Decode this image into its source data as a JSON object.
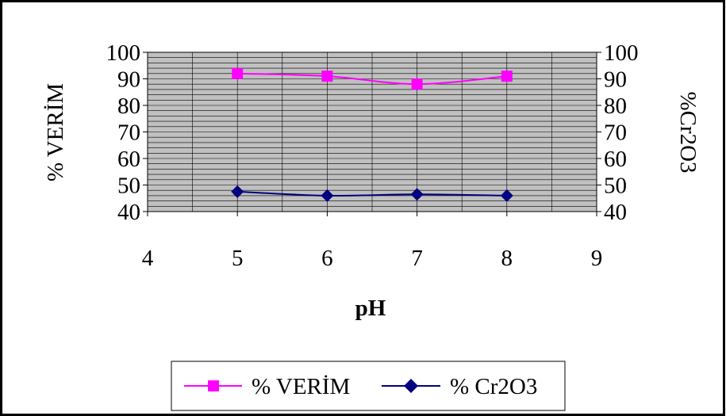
{
  "colors": {
    "plot_background": "#c0c0c0",
    "grid": "#000000",
    "series_verim": "#ff00ff",
    "series_cr2o3": "#000080"
  },
  "chart_data": {
    "type": "line",
    "title": "",
    "xlabel": "pH",
    "ylabel_left": "% VERİM",
    "ylabel_right": "%Cr2O3",
    "xlim": [
      4,
      9
    ],
    "ylim": [
      40,
      100
    ],
    "x_ticks": [
      "4",
      "5",
      "6",
      "7",
      "8",
      "9"
    ],
    "y_ticks": [
      "100",
      "90",
      "80",
      "70",
      "60",
      "50",
      "40"
    ],
    "grid": true,
    "legend_position": "bottom",
    "series": [
      {
        "name": "% VERİM",
        "marker": "square",
        "color": "#ff00ff",
        "x": [
          5,
          6,
          7,
          8
        ],
        "values": [
          92,
          91,
          88,
          91
        ]
      },
      {
        "name": "% Cr2O3",
        "marker": "diamond",
        "color": "#000080",
        "x": [
          5,
          6,
          7,
          8
        ],
        "values": [
          47.5,
          46,
          46.5,
          46
        ]
      }
    ]
  }
}
